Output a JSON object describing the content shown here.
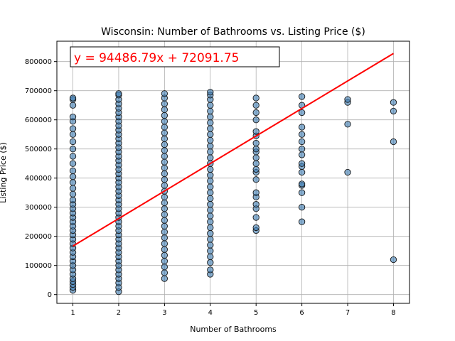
{
  "chart_data": {
    "type": "scatter",
    "title": "Wisconsin: Number of Bathrooms vs. Listing Price ($)",
    "xlabel": "Number of Bathrooms",
    "ylabel": "Listing Price ($)",
    "xlim": [
      0.65,
      8.35
    ],
    "ylim": [
      -30000,
      870000
    ],
    "xticks": [
      1,
      2,
      3,
      4,
      5,
      6,
      7,
      8
    ],
    "yticks": [
      0,
      100000,
      200000,
      300000,
      400000,
      500000,
      600000,
      700000,
      800000
    ],
    "grid": true,
    "marker_color": "#3a7ab0",
    "marker_edge_color": "#1a1a1a",
    "line_color": "#ff0000",
    "regression": {
      "equation_label": "y = 94486.79x + 72091.75",
      "slope": 94486.79,
      "intercept": 72091.75,
      "x_range": [
        1,
        8
      ]
    },
    "points": [
      {
        "x": 1,
        "ys": [
          15000,
          25000,
          35000,
          45000,
          55000,
          70000,
          85000,
          100000,
          115000,
          130000,
          145000,
          160000,
          175000,
          190000,
          205000,
          220000,
          235000,
          250000,
          265000,
          280000,
          295000,
          310000,
          325000,
          345000,
          365000,
          385000,
          405000,
          425000,
          450000,
          475000,
          500000,
          525000,
          550000,
          570000,
          595000,
          610000,
          650000,
          670000,
          675000
        ]
      },
      {
        "x": 2,
        "ys": [
          10000,
          25000,
          40000,
          55000,
          70000,
          85000,
          100000,
          115000,
          130000,
          145000,
          160000,
          175000,
          190000,
          205000,
          220000,
          235000,
          250000,
          265000,
          280000,
          295000,
          310000,
          325000,
          340000,
          355000,
          370000,
          385000,
          400000,
          415000,
          430000,
          445000,
          460000,
          475000,
          490000,
          505000,
          520000,
          535000,
          550000,
          565000,
          580000,
          595000,
          610000,
          625000,
          640000,
          655000,
          670000,
          685000,
          690000
        ]
      },
      {
        "x": 3,
        "ys": [
          55000,
          75000,
          95000,
          115000,
          135000,
          155000,
          175000,
          195000,
          215000,
          235000,
          255000,
          275000,
          295000,
          315000,
          335000,
          355000,
          375000,
          395000,
          415000,
          435000,
          455000,
          475000,
          495000,
          515000,
          535000,
          555000,
          575000,
          595000,
          615000,
          635000,
          655000,
          675000,
          690000
        ]
      },
      {
        "x": 4,
        "ys": [
          70000,
          85000,
          110000,
          130000,
          150000,
          170000,
          190000,
          210000,
          230000,
          250000,
          270000,
          290000,
          310000,
          330000,
          350000,
          370000,
          390000,
          410000,
          430000,
          450000,
          470000,
          490000,
          510000,
          530000,
          550000,
          570000,
          590000,
          610000,
          630000,
          650000,
          670000,
          685000,
          695000
        ]
      },
      {
        "x": 5,
        "ys": [
          220000,
          230000,
          265000,
          295000,
          310000,
          335000,
          350000,
          395000,
          420000,
          430000,
          450000,
          470000,
          490000,
          500000,
          520000,
          545000,
          560000,
          600000,
          625000,
          650000,
          675000
        ]
      },
      {
        "x": 6,
        "ys": [
          250000,
          300000,
          350000,
          375000,
          380000,
          420000,
          440000,
          450000,
          480000,
          500000,
          525000,
          550000,
          575000,
          625000,
          650000,
          680000
        ]
      },
      {
        "x": 7,
        "ys": [
          420000,
          585000,
          660000,
          670000
        ]
      },
      {
        "x": 8,
        "ys": [
          120000,
          525000,
          630000,
          660000
        ]
      }
    ]
  }
}
